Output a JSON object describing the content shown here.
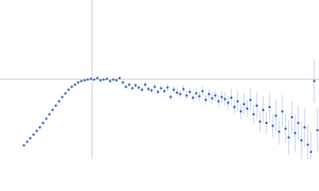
{
  "chart_data": {
    "type": "scatter",
    "xlim": [
      0,
      6
    ],
    "ylim": [
      0,
      2.2
    ],
    "xref": 1.732,
    "yref": 1.104,
    "ref_color": "#c8c8c8",
    "error_color": "#a9bfe6",
    "x": [
      0.45,
      0.51,
      0.57,
      0.63,
      0.69,
      0.75,
      0.81,
      0.87,
      0.93,
      0.99,
      1.05,
      1.11,
      1.17,
      1.23,
      1.29,
      1.35,
      1.41,
      1.47,
      1.53,
      1.59,
      1.65,
      1.71,
      1.77,
      1.83,
      1.89,
      1.95,
      2.01,
      2.07,
      2.13,
      2.19,
      2.25,
      2.31,
      2.37,
      2.43,
      2.49,
      2.55,
      2.61,
      2.67,
      2.73,
      2.79,
      2.85,
      2.91,
      2.97,
      3.03,
      3.09,
      3.15,
      3.21,
      3.27,
      3.33,
      3.39,
      3.45,
      3.51,
      3.57,
      3.63,
      3.69,
      3.75,
      3.81,
      3.87,
      3.93,
      3.99,
      4.05,
      4.11,
      4.17,
      4.23,
      4.29,
      4.35,
      4.41,
      4.47,
      4.53,
      4.59,
      4.65,
      4.71,
      4.77,
      4.83,
      4.89,
      4.95,
      5.01,
      5.07,
      5.13,
      5.19,
      5.25,
      5.31,
      5.37,
      5.43,
      5.49,
      5.55,
      5.61,
      5.67,
      5.73,
      5.79,
      5.85,
      5.91,
      5.97
    ],
    "series": [
      {
        "color": "#3a68bf",
        "values": [
          0.19,
          0.24,
          0.29,
          0.34,
          0.39,
          0.44,
          0.5,
          0.56,
          0.62,
          0.68,
          0.74,
          0.8,
          0.86,
          0.91,
          0.96,
          1.0,
          1.03,
          1.06,
          1.08,
          1.09,
          1.1,
          1.11,
          1.1,
          1.12,
          1.09,
          1.1,
          1.11,
          1.08,
          1.1,
          1.09,
          1.12,
          1.06,
          1.0,
          1.03,
          0.98,
          1.02,
          0.99,
          0.96,
          1.03,
          0.97,
          0.95,
          1.0,
          0.93,
          0.98,
          0.94,
          0.99,
          0.86,
          0.96,
          0.92,
          0.9,
          0.97,
          0.88,
          0.93,
          0.85,
          0.91,
          0.87,
          0.94,
          0.82,
          0.9,
          0.84,
          0.88,
          0.8,
          0.86,
          0.83,
          0.78,
          0.85,
          0.72,
          0.8,
          0.66,
          0.76,
          0.7,
          0.82,
          0.62,
          0.74,
          0.52,
          0.68,
          0.5,
          0.72,
          0.46,
          0.6,
          0.38,
          0.66,
          0.42,
          0.3,
          0.58,
          0.36,
          0.5,
          0.26,
          0.44,
          0.2,
          0.1,
          1.08,
          0.4
        ],
        "errors": [
          0.01,
          0.01,
          0.01,
          0.01,
          0.01,
          0.01,
          0.01,
          0.01,
          0.01,
          0.01,
          0.01,
          0.01,
          0.01,
          0.01,
          0.01,
          0.01,
          0.01,
          0.01,
          0.01,
          0.01,
          0.01,
          0.015,
          0.015,
          0.015,
          0.015,
          0.015,
          0.015,
          0.015,
          0.015,
          0.015,
          0.015,
          0.02,
          0.02,
          0.025,
          0.025,
          0.03,
          0.03,
          0.03,
          0.035,
          0.035,
          0.04,
          0.04,
          0.04,
          0.045,
          0.045,
          0.05,
          0.05,
          0.05,
          0.055,
          0.055,
          0.06,
          0.06,
          0.06,
          0.065,
          0.065,
          0.07,
          0.07,
          0.07,
          0.075,
          0.075,
          0.08,
          0.08,
          0.085,
          0.09,
          0.1,
          0.12,
          0.1,
          0.14,
          0.11,
          0.15,
          0.12,
          0.16,
          0.13,
          0.18,
          0.14,
          0.19,
          0.15,
          0.2,
          0.16,
          0.22,
          0.18,
          0.23,
          0.2,
          0.24,
          0.22,
          0.25,
          0.24,
          0.26,
          0.27,
          0.28,
          0.28,
          0.3,
          0.3
        ]
      }
    ]
  }
}
